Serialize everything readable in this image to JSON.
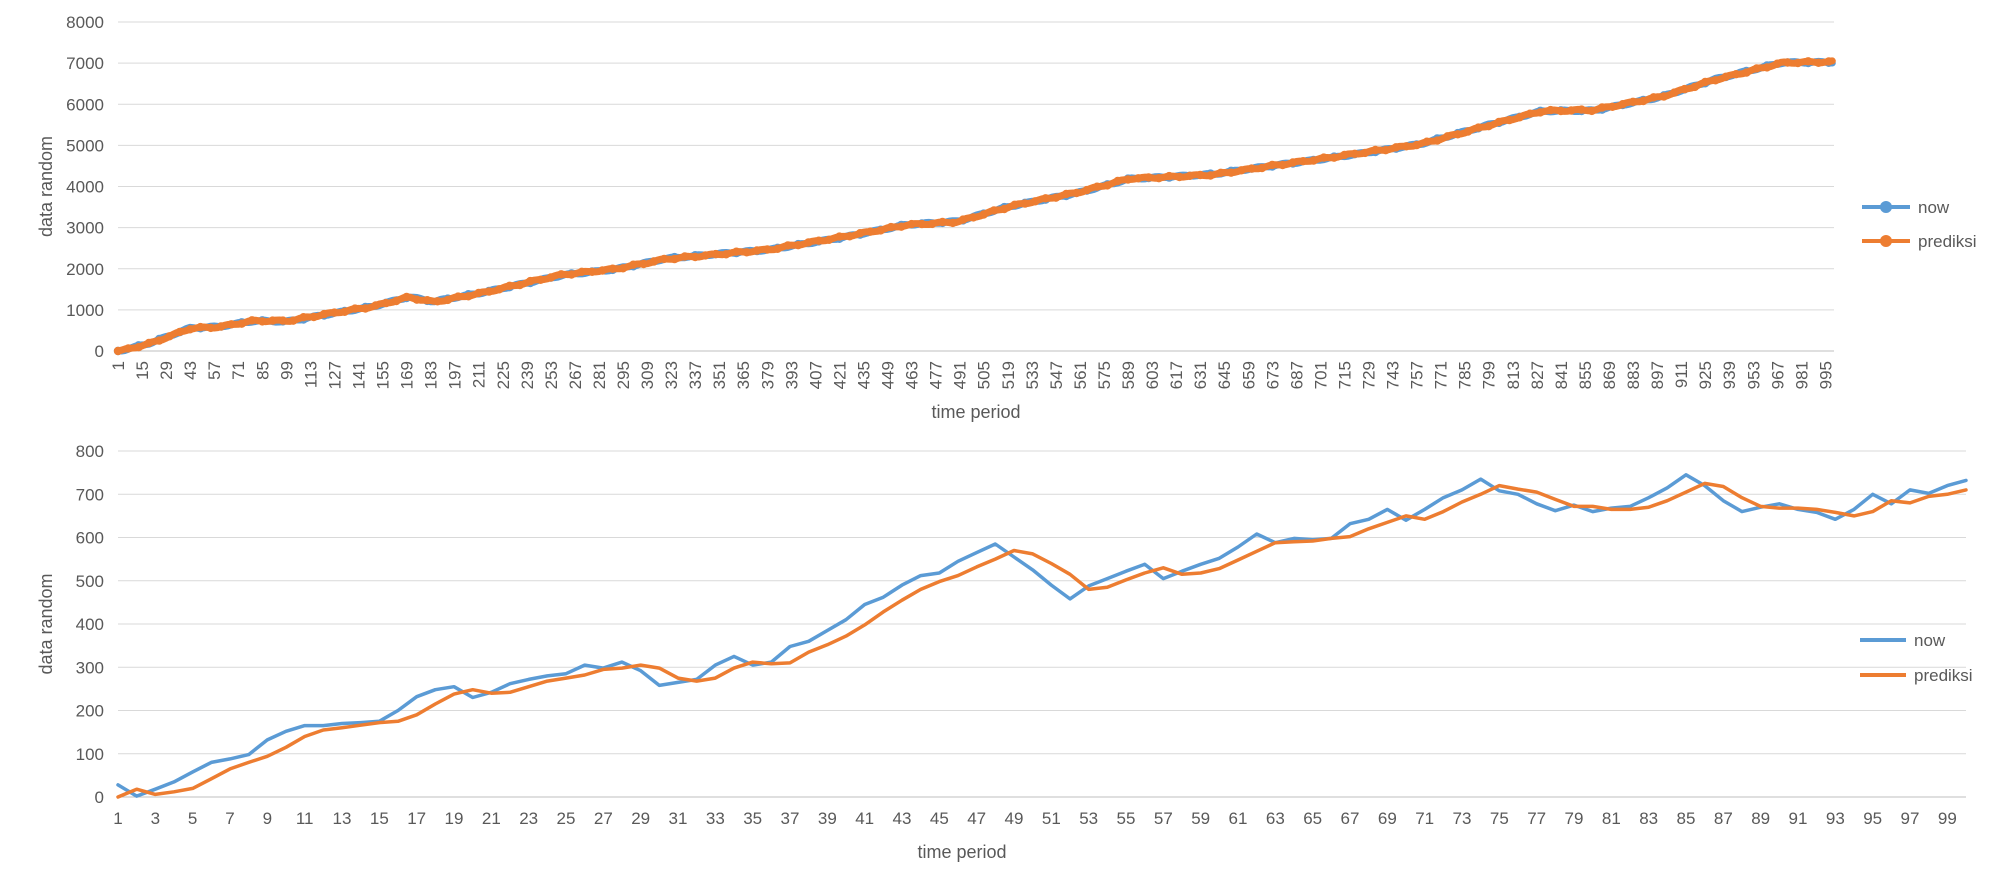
{
  "chart_data": [
    {
      "type": "line",
      "title": "",
      "xlabel": "time period",
      "ylabel": "data random",
      "ylim": [
        0,
        8000
      ],
      "yticks": [
        0,
        1000,
        2000,
        3000,
        4000,
        5000,
        6000,
        7000,
        8000
      ],
      "x_range": [
        1,
        1000
      ],
      "xtick_step": 14,
      "markers": true,
      "grid": true,
      "legend_position": "right",
      "anchors": [
        [
          1,
          0
        ],
        [
          20,
          200
        ],
        [
          43,
          550
        ],
        [
          60,
          580
        ],
        [
          80,
          720
        ],
        [
          100,
          720
        ],
        [
          120,
          880
        ],
        [
          150,
          1100
        ],
        [
          170,
          1320
        ],
        [
          185,
          1200
        ],
        [
          215,
          1420
        ],
        [
          260,
          1850
        ],
        [
          290,
          2000
        ],
        [
          320,
          2250
        ],
        [
          380,
          2450
        ],
        [
          420,
          2750
        ],
        [
          460,
          3080
        ],
        [
          490,
          3150
        ],
        [
          520,
          3500
        ],
        [
          560,
          3850
        ],
        [
          590,
          4200
        ],
        [
          640,
          4300
        ],
        [
          700,
          4650
        ],
        [
          760,
          5050
        ],
        [
          800,
          5500
        ],
        [
          830,
          5820
        ],
        [
          860,
          5850
        ],
        [
          900,
          6200
        ],
        [
          930,
          6600
        ],
        [
          970,
          7000
        ],
        [
          1000,
          7020
        ]
      ],
      "series": [
        {
          "name": "now",
          "color": "#5b9bd5"
        },
        {
          "name": "prediksi",
          "color": "#ed7d31"
        }
      ]
    },
    {
      "type": "line",
      "title": "",
      "xlabel": "time period",
      "ylabel": "data random",
      "ylim": [
        0,
        800
      ],
      "yticks": [
        0,
        100,
        200,
        300,
        400,
        500,
        600,
        700,
        800
      ],
      "markers": false,
      "grid": true,
      "legend_position": "right",
      "x": [
        1,
        2,
        3,
        4,
        5,
        6,
        7,
        8,
        9,
        10,
        11,
        12,
        13,
        14,
        15,
        16,
        17,
        18,
        19,
        20,
        21,
        22,
        23,
        24,
        25,
        26,
        27,
        28,
        29,
        30,
        31,
        32,
        33,
        34,
        35,
        36,
        37,
        38,
        39,
        40,
        41,
        42,
        43,
        44,
        45,
        46,
        47,
        48,
        49,
        50,
        51,
        52,
        53,
        54,
        55,
        56,
        57,
        58,
        59,
        60,
        61,
        62,
        63,
        64,
        65,
        66,
        67,
        68,
        69,
        70,
        71,
        72,
        73,
        74,
        75,
        76,
        77,
        78,
        79,
        80,
        81,
        82,
        83,
        84,
        85,
        86,
        87,
        88,
        89,
        90,
        91,
        92,
        93,
        94,
        95,
        96,
        97,
        98,
        99,
        100
      ],
      "x_tick_labels": [
        1,
        3,
        5,
        7,
        9,
        11,
        13,
        15,
        17,
        19,
        21,
        23,
        25,
        27,
        29,
        31,
        33,
        35,
        37,
        39,
        41,
        43,
        45,
        47,
        49,
        51,
        53,
        55,
        57,
        59,
        61,
        63,
        65,
        67,
        69,
        71,
        73,
        75,
        77,
        79,
        81,
        83,
        85,
        87,
        89,
        91,
        93,
        95,
        97,
        99
      ],
      "series": [
        {
          "name": "now",
          "color": "#5b9bd5",
          "values": [
            28,
            2,
            18,
            35,
            58,
            80,
            88,
            98,
            132,
            152,
            165,
            165,
            170,
            172,
            175,
            200,
            232,
            248,
            255,
            230,
            242,
            262,
            272,
            280,
            285,
            305,
            298,
            312,
            292,
            258,
            265,
            272,
            305,
            325,
            305,
            312,
            348,
            360,
            385,
            410,
            445,
            462,
            490,
            512,
            518,
            545,
            565,
            585,
            555,
            525,
            490,
            458,
            488,
            505,
            522,
            538,
            505,
            522,
            538,
            552,
            578,
            608,
            588,
            598,
            595,
            598,
            632,
            642,
            665,
            640,
            665,
            692,
            710,
            735,
            708,
            700,
            678,
            662,
            675,
            660,
            668,
            672,
            692,
            715,
            745,
            720,
            685,
            660,
            670,
            678,
            665,
            658,
            642,
            665,
            700,
            678,
            710,
            702,
            720,
            732
          ]
        },
        {
          "name": "prediksi",
          "color": "#ed7d31",
          "values": [
            0,
            18,
            6,
            12,
            20,
            42,
            65,
            80,
            94,
            115,
            140,
            155,
            160,
            166,
            172,
            175,
            190,
            215,
            238,
            248,
            240,
            242,
            255,
            268,
            275,
            282,
            295,
            298,
            305,
            298,
            275,
            268,
            275,
            298,
            312,
            308,
            310,
            335,
            352,
            372,
            398,
            428,
            455,
            480,
            498,
            512,
            532,
            550,
            570,
            562,
            540,
            515,
            480,
            485,
            502,
            518,
            530,
            515,
            518,
            528,
            548,
            568,
            588,
            590,
            592,
            598,
            602,
            620,
            635,
            650,
            642,
            660,
            682,
            700,
            720,
            712,
            705,
            688,
            672,
            672,
            665,
            665,
            670,
            685,
            705,
            725,
            718,
            692,
            672,
            668,
            668,
            665,
            658,
            650,
            660,
            685,
            680,
            695,
            700,
            710
          ]
        }
      ]
    }
  ]
}
